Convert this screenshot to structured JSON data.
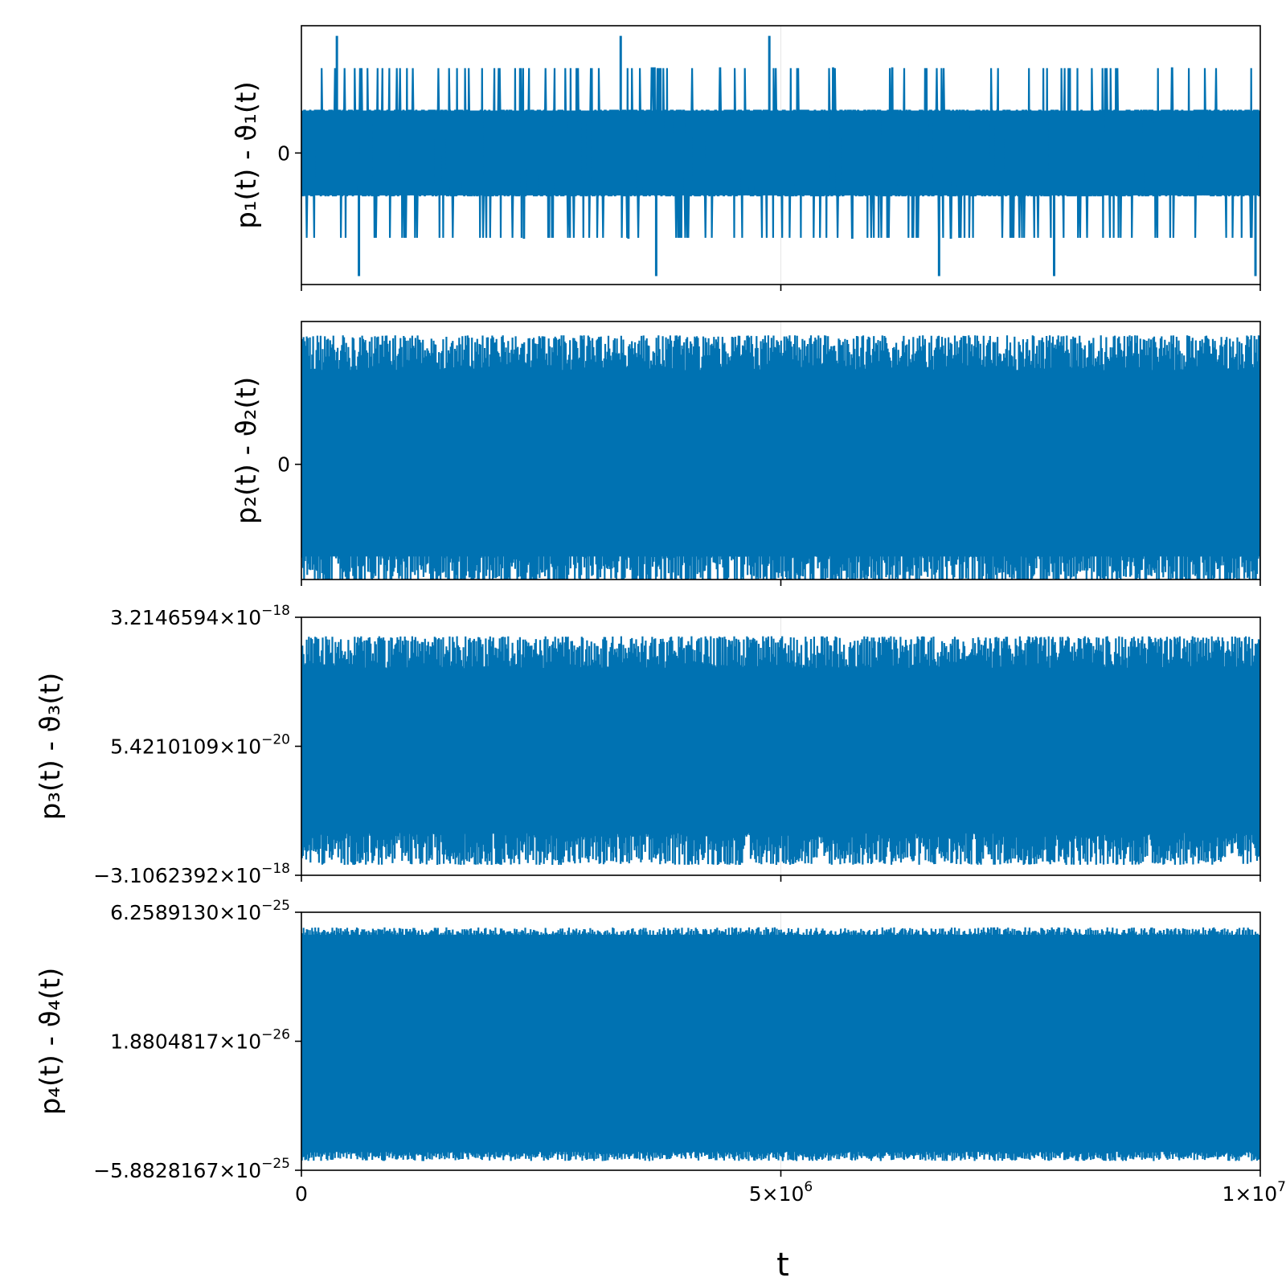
{
  "chart_data": {
    "type": "line",
    "xlabel": "t",
    "xlim": [
      0,
      10000000
    ],
    "x_ticks": [
      {
        "value": 0,
        "mantissa": "0",
        "exponent": ""
      },
      {
        "value": 5000000,
        "mantissa": "5×10",
        "exponent": "6"
      },
      {
        "value": 10000000,
        "mantissa": "1×10",
        "exponent": "7"
      }
    ],
    "series_color": "#0072b2",
    "panels": [
      {
        "ylabel": "p₁(t) - ϑ₁(t)",
        "y_ticks": [
          {
            "value": 0,
            "mantissa": "0",
            "exponent": ""
          }
        ],
        "ylim": [
          -1.55,
          1.5
        ],
        "signal": {
          "levels": [
            -1,
            -0.5,
            0,
            0.5,
            1
          ],
          "extremes": [
            -1.45,
            1.38
          ],
          "fill_band": [
            -0.5,
            0.5
          ],
          "upper_peak_level": 1.0,
          "lower_peak_level": -1.0,
          "upper_spike_t": [
            370000,
            3330000,
            4880000
          ],
          "lower_spike_t": [
            600000,
            3700000,
            6650000,
            7850000,
            9950000
          ]
        }
      },
      {
        "ylabel": "p₂(t) - ϑ₂(t)",
        "y_ticks": [
          {
            "value": 0,
            "mantissa": "0",
            "exponent": ""
          }
        ],
        "ylim": [
          -1.25,
          1.55
        ],
        "signal": {
          "fill_band": [
            -1.0,
            0.95
          ],
          "max_envelope": 1.4,
          "min_envelope": -1.3
        }
      },
      {
        "ylabel": "p₃(t) - ϑ₃(t)",
        "y_ticks": [
          {
            "value": 3.2146594e-18,
            "mantissa": "3.2146594×10",
            "exponent": "−18"
          },
          {
            "value": 5.4210109e-20,
            "mantissa": "5.4210109×10",
            "exponent": "−20"
          },
          {
            "value": -3.1062392e-18,
            "mantissa": "−3.1062392×10",
            "exponent": "−18"
          }
        ],
        "ylim": [
          -3.1062392e-18,
          3.2146594e-18
        ],
        "signal": {
          "fill_band": [
            -1.35e-18,
            1.45e-18
          ],
          "max_envelope": 2.75e-18,
          "min_envelope": -2.85e-18
        }
      },
      {
        "ylabel": "p₄(t) - ϑ₄(t)",
        "y_ticks": [
          {
            "value": 6.258913e-25,
            "mantissa": "6.2589130×10",
            "exponent": "−25"
          },
          {
            "value": 1.8804817e-26,
            "mantissa": "1.8804817×10",
            "exponent": "−26"
          },
          {
            "value": -5.8828167e-25,
            "mantissa": "−5.8828167×10",
            "exponent": "−25"
          }
        ],
        "ylim": [
          -5.8828167e-25,
          6.258913e-25
        ],
        "signal": {
          "fill_band": [
            -4.8e-25,
            5.2e-25
          ],
          "max_envelope": 5.55e-25,
          "min_envelope": -5.45e-25
        }
      }
    ]
  }
}
